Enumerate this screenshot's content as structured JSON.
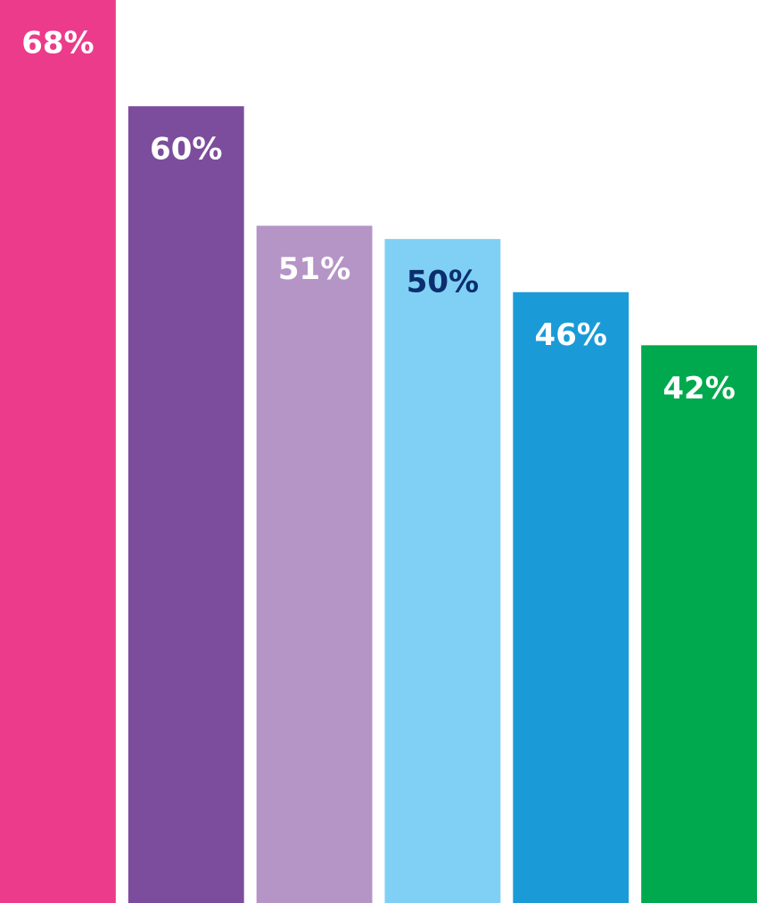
{
  "chart_data": {
    "type": "bar",
    "categories": [
      null,
      null,
      null,
      null,
      null,
      null
    ],
    "values": [
      68,
      60,
      51,
      50,
      46,
      42
    ],
    "value_labels": [
      "68%",
      "60%",
      "51%",
      "50%",
      "46%",
      "42%"
    ],
    "colors": [
      "#ec3b8a",
      "#7c4d9c",
      "#b594c6",
      "#7fd0f4",
      "#1a9bd7",
      "#00a94d"
    ],
    "label_colors": [
      "#ffffff",
      "#ffffff",
      "#ffffff",
      "#0b2e6e",
      "#ffffff",
      "#ffffff"
    ]
  }
}
